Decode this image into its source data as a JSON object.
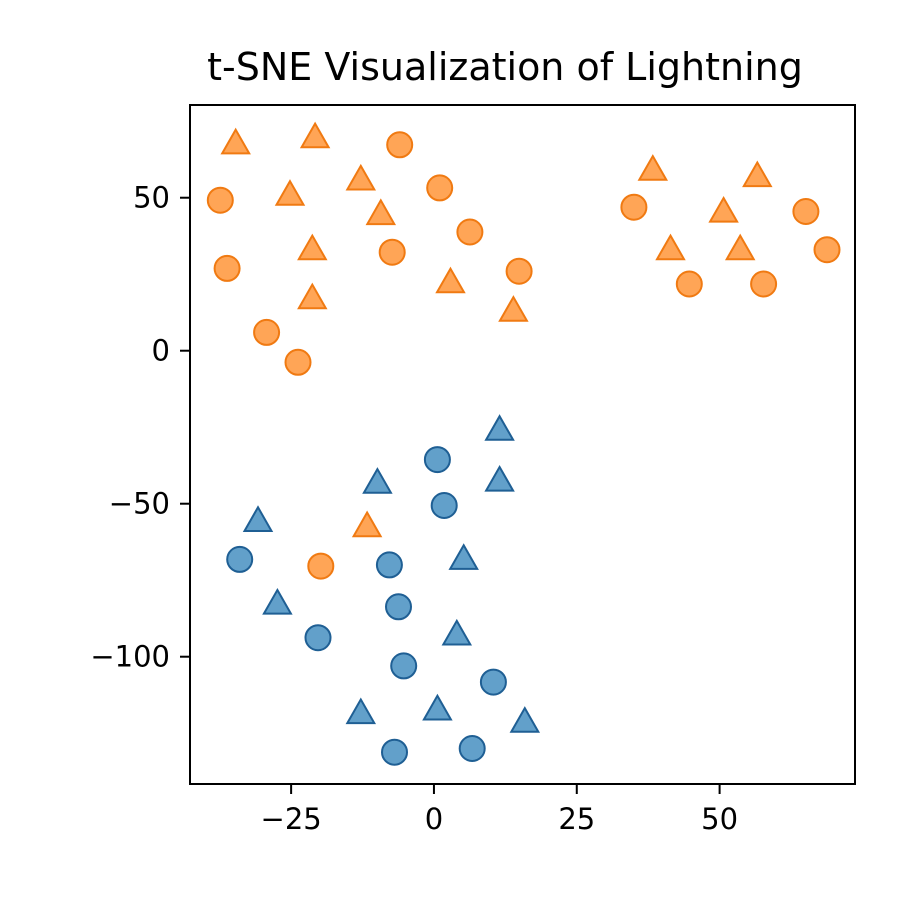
{
  "chart_data": {
    "type": "scatter",
    "title": "t-SNE Visualization of Lightning",
    "xlabel": "",
    "ylabel": "",
    "xlim": [
      -42.7,
      73.7
    ],
    "ylim": [
      -141.6,
      80.3
    ],
    "xticks": [
      -25,
      0,
      25,
      50
    ],
    "yticks": [
      50,
      0,
      -50,
      -100
    ],
    "x_tick_labels": [
      "−25",
      "0",
      "25",
      "50"
    ],
    "y_tick_labels": [
      "50",
      "0",
      "−50",
      "−100"
    ],
    "grid": false,
    "legend": "none",
    "colors": {
      "blue_fill": "#1f77b4",
      "blue_edge": "#1f5f94",
      "orange_fill": "#ff7f0e",
      "orange_edge": "#f07a12"
    },
    "series": [
      {
        "color": "#ff7f0e",
        "marker": "circle",
        "points": [
          {
            "x": -37.4,
            "y": 49.2
          },
          {
            "x": -36.2,
            "y": 26.9
          },
          {
            "x": -29.3,
            "y": 6.0
          },
          {
            "x": -23.8,
            "y": -3.8
          },
          {
            "x": -6.0,
            "y": 67.3
          },
          {
            "x": -7.3,
            "y": 32.2
          },
          {
            "x": 1.0,
            "y": 53.2
          },
          {
            "x": 6.3,
            "y": 38.8
          },
          {
            "x": 14.9,
            "y": 26.0
          },
          {
            "x": -19.8,
            "y": -70.4
          },
          {
            "x": 35.0,
            "y": 46.9
          },
          {
            "x": 44.7,
            "y": 21.8
          },
          {
            "x": 57.7,
            "y": 21.8
          },
          {
            "x": 65.1,
            "y": 45.5
          },
          {
            "x": 68.8,
            "y": 33.0
          }
        ]
      },
      {
        "color": "#ff7f0e",
        "marker": "triangle",
        "points": [
          {
            "x": -34.7,
            "y": 67.8
          },
          {
            "x": -20.8,
            "y": 69.8
          },
          {
            "x": -25.2,
            "y": 51.0
          },
          {
            "x": -12.8,
            "y": 56.0
          },
          {
            "x": -9.3,
            "y": 44.7
          },
          {
            "x": -21.3,
            "y": 33.2
          },
          {
            "x": -21.3,
            "y": 17.2
          },
          {
            "x": 2.9,
            "y": 22.4
          },
          {
            "x": 13.9,
            "y": 13.1
          },
          {
            "x": 38.3,
            "y": 59.2
          },
          {
            "x": 41.4,
            "y": 33.2
          },
          {
            "x": 50.7,
            "y": 45.5
          },
          {
            "x": 53.6,
            "y": 33.2
          },
          {
            "x": 56.6,
            "y": 57.1
          },
          {
            "x": -11.7,
            "y": -57.3
          }
        ]
      },
      {
        "color": "#1f77b4",
        "marker": "circle",
        "points": [
          {
            "x": 0.6,
            "y": -35.6
          },
          {
            "x": 1.8,
            "y": -50.6
          },
          {
            "x": -34.0,
            "y": -68.2
          },
          {
            "x": -7.8,
            "y": -70.0
          },
          {
            "x": -6.2,
            "y": -83.7
          },
          {
            "x": -20.3,
            "y": -93.8
          },
          {
            "x": -5.3,
            "y": -103.0
          },
          {
            "x": 10.4,
            "y": -108.3
          },
          {
            "x": -6.9,
            "y": -131.2
          },
          {
            "x": 6.7,
            "y": -130.0
          }
        ]
      },
      {
        "color": "#1f77b4",
        "marker": "triangle",
        "points": [
          {
            "x": 11.5,
            "y": -25.8
          },
          {
            "x": 11.5,
            "y": -42.4
          },
          {
            "x": -9.9,
            "y": -43.1
          },
          {
            "x": -30.8,
            "y": -55.6
          },
          {
            "x": 5.2,
            "y": -68.0
          },
          {
            "x": -27.4,
            "y": -82.6
          },
          {
            "x": 4.0,
            "y": -92.7
          },
          {
            "x": -12.8,
            "y": -118.4
          },
          {
            "x": 0.6,
            "y": -117.2
          },
          {
            "x": 15.9,
            "y": -121.2
          }
        ]
      }
    ]
  }
}
